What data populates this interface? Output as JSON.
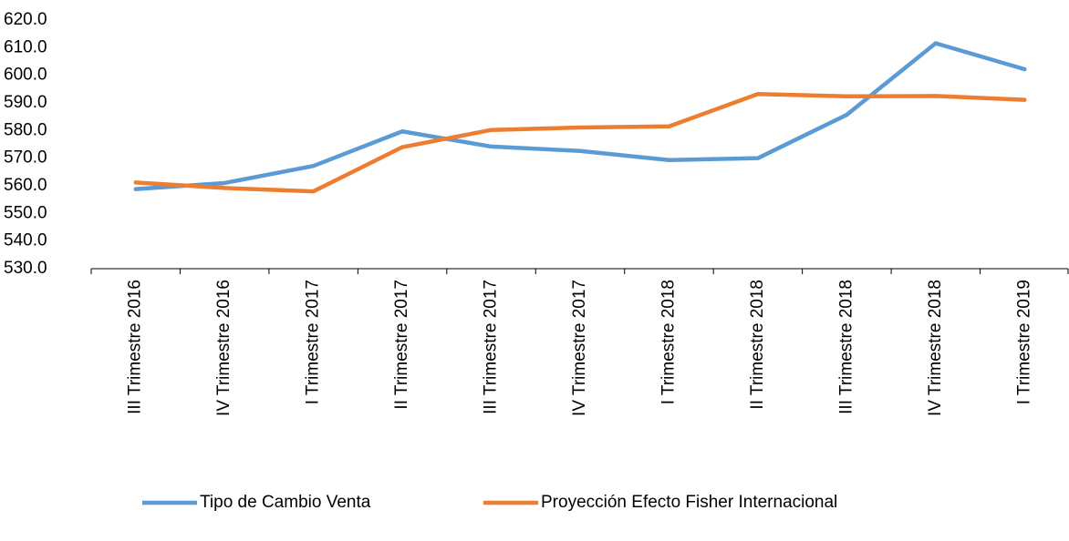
{
  "chart_data": {
    "type": "line",
    "categories": [
      "III Trimestre 2016",
      "IV Trimestre 2016",
      "I Trimestre 2017",
      "II Trimestre 2017",
      "III Trimestre 2017",
      "IV Trimestre 2017",
      "I Trimestre 2018",
      "II Trimestre 2018",
      "III Trimestre 2018",
      "IV Trimestre 2018",
      "I Trimestre 2019"
    ],
    "series": [
      {
        "name": "Tipo de Cambio Venta",
        "color": "#5b9bd5",
        "values": [
          558.8,
          561.0,
          567.2,
          579.7,
          574.2,
          572.6,
          569.3,
          570.0,
          585.7,
          611.6,
          602.2
        ]
      },
      {
        "name": "Proyección Efecto Fisher Internacional",
        "color": "#ed7d31",
        "values": [
          561.2,
          559.2,
          558.0,
          574.0,
          580.2,
          581.1,
          581.5,
          593.2,
          592.4,
          592.5,
          591.1
        ]
      }
    ],
    "ylim": [
      530,
      620
    ],
    "yticks": [
      {
        "value": 530,
        "label": "530.0"
      },
      {
        "value": 540,
        "label": "540.0"
      },
      {
        "value": 550,
        "label": "550.0"
      },
      {
        "value": 560,
        "label": "560.0"
      },
      {
        "value": 570,
        "label": "570.0"
      },
      {
        "value": 580,
        "label": "580.0"
      },
      {
        "value": 590,
        "label": "590.0"
      },
      {
        "value": 600,
        "label": "600.0"
      },
      {
        "value": 610,
        "label": "610.0"
      },
      {
        "value": 620,
        "label": "620.0"
      }
    ],
    "legend": "bottom"
  }
}
